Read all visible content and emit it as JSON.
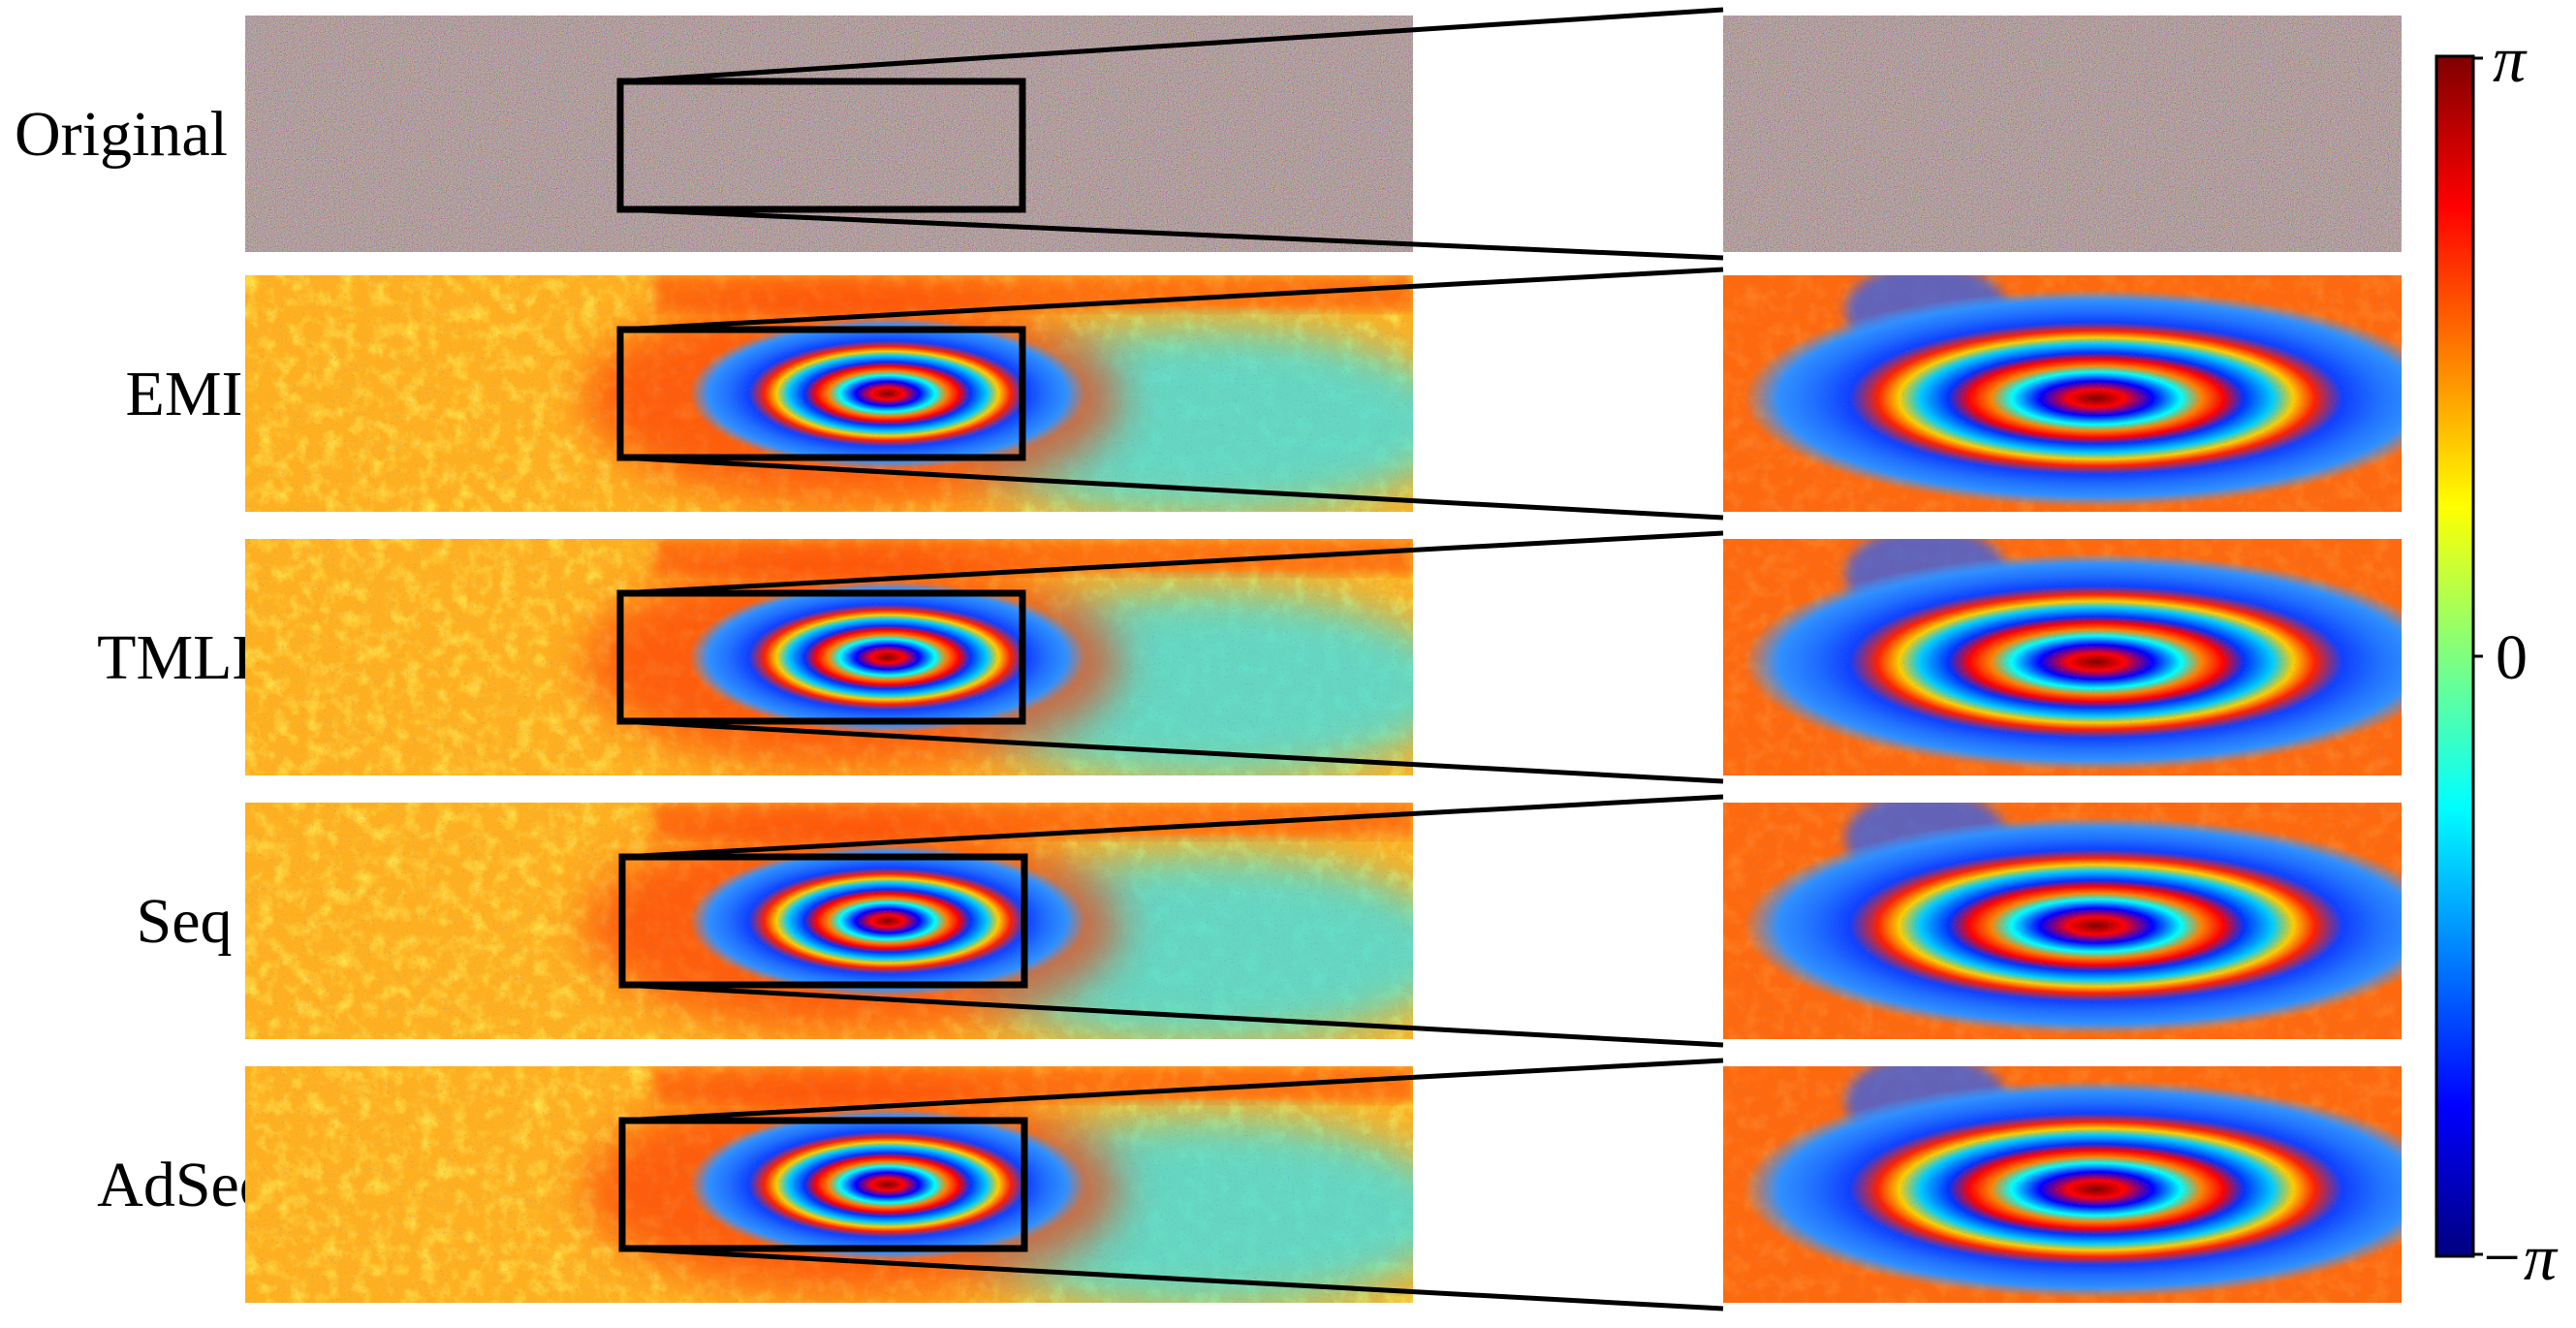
{
  "rows": [
    {
      "label": "Original",
      "kind": "noise"
    },
    {
      "label": "EMI",
      "kind": "fringe"
    },
    {
      "label": "TMLE",
      "kind": "fringe"
    },
    {
      "label": "Seq",
      "kind": "fringe"
    },
    {
      "label": "AdSeq",
      "kind": "fringe"
    }
  ],
  "colorbar": {
    "colormap": "jet",
    "top_label": "π",
    "mid_label": "0",
    "bottom_label": "−π",
    "colors": [
      "#00007f",
      "#0000ff",
      "#007fff",
      "#00ffff",
      "#7fff7f",
      "#ffff00",
      "#ff7f00",
      "#ff0000",
      "#7f0000"
    ]
  }
}
